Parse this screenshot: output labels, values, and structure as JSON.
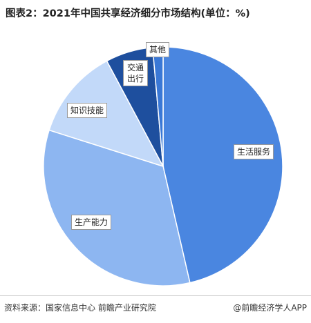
{
  "chart_data": {
    "type": "pie",
    "title": "图表2：2021年中国共享经济细分市场结构(单位：%)",
    "categories": [
      "生活服务",
      "生产能力",
      "知识技能",
      "交通出行",
      "其他"
    ],
    "values": [
      46.4,
      33.5,
      12.3,
      6.4,
      1.4
    ],
    "colors": [
      "#4a86e0",
      "#8db6f1",
      "#c2d9f9",
      "#1e4f9e",
      "#3a78d6"
    ],
    "source": "资料来源：国家信息中心 前瞻产业研究院",
    "brand": "@前瞻经济学人APP"
  }
}
